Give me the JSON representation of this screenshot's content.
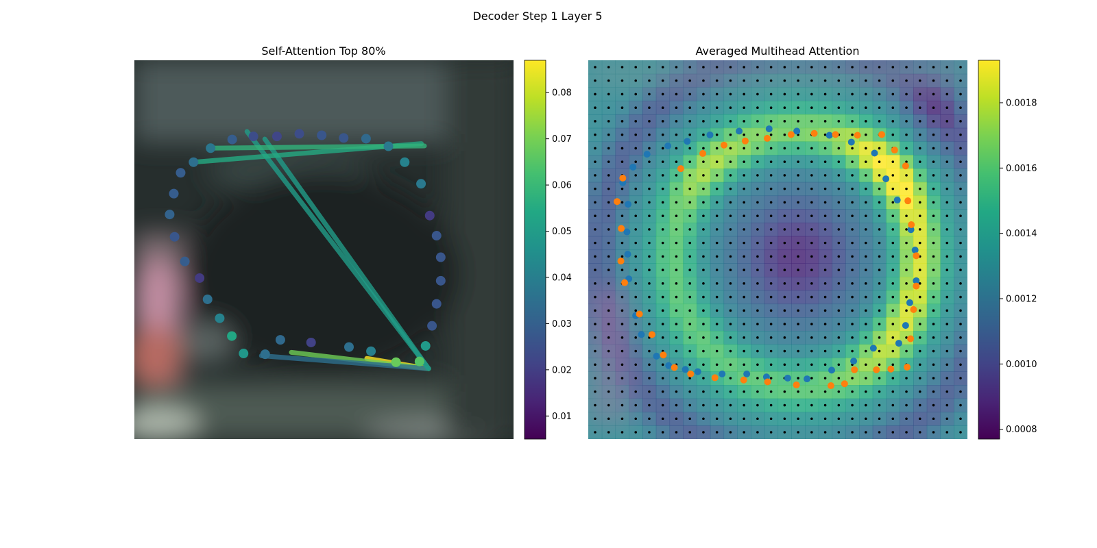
{
  "figure": {
    "suptitle": "Decoder Step 1 Layer 5"
  },
  "chart_data": [
    {
      "type": "scatter",
      "title": "Self-Attention Top 80%",
      "colormap": "viridis",
      "colorbar": {
        "range": [
          0.005,
          0.087
        ],
        "ticks": [
          0.01,
          0.02,
          0.03,
          0.04,
          0.05,
          0.06,
          0.07,
          0.08
        ],
        "tick_labels": [
          "0.01",
          "0.02",
          "0.03",
          "0.04",
          "0.05",
          "0.06",
          "0.07",
          "0.08"
        ]
      },
      "xlim": [
        0,
        1
      ],
      "ylim": [
        0,
        1
      ],
      "points": [
        {
          "x": 0.376,
          "y": 0.201,
          "v": 0.022
        },
        {
          "x": 0.435,
          "y": 0.194,
          "v": 0.024
        },
        {
          "x": 0.494,
          "y": 0.198,
          "v": 0.027
        },
        {
          "x": 0.552,
          "y": 0.205,
          "v": 0.027
        },
        {
          "x": 0.611,
          "y": 0.207,
          "v": 0.033
        },
        {
          "x": 0.67,
          "y": 0.227,
          "v": 0.038
        },
        {
          "x": 0.713,
          "y": 0.269,
          "v": 0.041
        },
        {
          "x": 0.756,
          "y": 0.326,
          "v": 0.038
        },
        {
          "x": 0.779,
          "y": 0.41,
          "v": 0.019
        },
        {
          "x": 0.797,
          "y": 0.463,
          "v": 0.027
        },
        {
          "x": 0.808,
          "y": 0.52,
          "v": 0.027
        },
        {
          "x": 0.808,
          "y": 0.582,
          "v": 0.027
        },
        {
          "x": 0.797,
          "y": 0.643,
          "v": 0.027
        },
        {
          "x": 0.785,
          "y": 0.701,
          "v": 0.027
        },
        {
          "x": 0.768,
          "y": 0.754,
          "v": 0.049
        },
        {
          "x": 0.752,
          "y": 0.795,
          "v": 0.065
        },
        {
          "x": 0.69,
          "y": 0.797,
          "v": 0.068
        },
        {
          "x": 0.624,
          "y": 0.768,
          "v": 0.04
        },
        {
          "x": 0.566,
          "y": 0.757,
          "v": 0.035
        },
        {
          "x": 0.466,
          "y": 0.745,
          "v": 0.021
        },
        {
          "x": 0.385,
          "y": 0.738,
          "v": 0.033
        },
        {
          "x": 0.345,
          "y": 0.776,
          "v": 0.035
        },
        {
          "x": 0.288,
          "y": 0.774,
          "v": 0.048
        },
        {
          "x": 0.257,
          "y": 0.728,
          "v": 0.054
        },
        {
          "x": 0.225,
          "y": 0.681,
          "v": 0.041
        },
        {
          "x": 0.193,
          "y": 0.631,
          "v": 0.035
        },
        {
          "x": 0.172,
          "y": 0.575,
          "v": 0.019
        },
        {
          "x": 0.133,
          "y": 0.531,
          "v": 0.029
        },
        {
          "x": 0.106,
          "y": 0.466,
          "v": 0.027
        },
        {
          "x": 0.093,
          "y": 0.407,
          "v": 0.031
        },
        {
          "x": 0.104,
          "y": 0.352,
          "v": 0.029
        },
        {
          "x": 0.122,
          "y": 0.297,
          "v": 0.029
        },
        {
          "x": 0.156,
          "y": 0.269,
          "v": 0.035
        },
        {
          "x": 0.201,
          "y": 0.232,
          "v": 0.037
        },
        {
          "x": 0.258,
          "y": 0.209,
          "v": 0.029
        },
        {
          "x": 0.314,
          "y": 0.201,
          "v": 0.024
        }
      ],
      "links": [
        {
          "from": [
            0.776,
            0.814
          ],
          "to": [
            0.613,
            0.787
          ],
          "v": 0.087
        },
        {
          "from": [
            0.776,
            0.814
          ],
          "to": [
            0.414,
            0.771
          ],
          "v": 0.069
        },
        {
          "from": [
            0.776,
            0.814
          ],
          "to": [
            0.335,
            0.78
          ],
          "v": 0.035
        },
        {
          "from": [
            0.776,
            0.814
          ],
          "to": [
            0.344,
            0.208
          ],
          "v": 0.05
        },
        {
          "from": [
            0.776,
            0.814
          ],
          "to": [
            0.297,
            0.188
          ],
          "v": 0.05
        },
        {
          "from": [
            0.757,
            0.22
          ],
          "to": [
            0.156,
            0.269
          ],
          "v": 0.055
        },
        {
          "from": [
            0.765,
            0.226
          ],
          "to": [
            0.201,
            0.232
          ],
          "v": 0.058
        }
      ]
    },
    {
      "type": "heatmap",
      "title": "Averaged Multihead Attention",
      "colormap": "viridis",
      "colorbar": {
        "range": [
          0.00077,
          0.00193
        ],
        "ticks": [
          0.0008,
          0.001,
          0.0012,
          0.0014,
          0.0016,
          0.0018
        ],
        "tick_labels": [
          "0.0008",
          "0.0010",
          "0.0012",
          "0.0014",
          "0.0016",
          "0.0018"
        ]
      },
      "grid": {
        "rows": 28,
        "cols": 28
      },
      "series": [
        {
          "marker_color": "#1f77b4",
          "points": [
            [
              0.091,
              0.323
            ],
            [
              0.105,
              0.38
            ],
            [
              0.102,
              0.453
            ],
            [
              0.104,
              0.512
            ],
            [
              0.107,
              0.577
            ],
            [
              0.125,
              0.674
            ],
            [
              0.14,
              0.724
            ],
            [
              0.18,
              0.781
            ],
            [
              0.212,
              0.806
            ],
            [
              0.256,
              0.816
            ],
            [
              0.289,
              0.822
            ],
            [
              0.353,
              0.828
            ],
            [
              0.418,
              0.828
            ],
            [
              0.47,
              0.836
            ],
            [
              0.526,
              0.839
            ],
            [
              0.577,
              0.841
            ],
            [
              0.642,
              0.818
            ],
            [
              0.7,
              0.794
            ],
            [
              0.752,
              0.76
            ],
            [
              0.819,
              0.747
            ],
            [
              0.837,
              0.7
            ],
            [
              0.848,
              0.64
            ],
            [
              0.865,
              0.582
            ],
            [
              0.862,
              0.501
            ],
            [
              0.851,
              0.447
            ],
            [
              0.815,
              0.369
            ],
            [
              0.785,
              0.313
            ],
            [
              0.755,
              0.245
            ],
            [
              0.694,
              0.216
            ],
            [
              0.636,
              0.198
            ],
            [
              0.55,
              0.187
            ],
            [
              0.477,
              0.181
            ],
            [
              0.398,
              0.187
            ],
            [
              0.321,
              0.197
            ],
            [
              0.261,
              0.214
            ],
            [
              0.21,
              0.226
            ],
            [
              0.155,
              0.248
            ],
            [
              0.118,
              0.282
            ]
          ]
        },
        {
          "marker_color": "#ff7f0e",
          "points": [
            [
              0.091,
              0.311
            ],
            [
              0.076,
              0.373
            ],
            [
              0.087,
              0.444
            ],
            [
              0.086,
              0.53
            ],
            [
              0.096,
              0.587
            ],
            [
              0.135,
              0.67
            ],
            [
              0.168,
              0.724
            ],
            [
              0.198,
              0.778
            ],
            [
              0.227,
              0.811
            ],
            [
              0.27,
              0.828
            ],
            [
              0.334,
              0.838
            ],
            [
              0.41,
              0.844
            ],
            [
              0.473,
              0.849
            ],
            [
              0.549,
              0.857
            ],
            [
              0.64,
              0.859
            ],
            [
              0.676,
              0.854
            ],
            [
              0.702,
              0.817
            ],
            [
              0.76,
              0.817
            ],
            [
              0.798,
              0.815
            ],
            [
              0.841,
              0.81
            ],
            [
              0.85,
              0.735
            ],
            [
              0.858,
              0.658
            ],
            [
              0.865,
              0.596
            ],
            [
              0.865,
              0.516
            ],
            [
              0.852,
              0.434
            ],
            [
              0.843,
              0.371
            ],
            [
              0.837,
              0.279
            ],
            [
              0.808,
              0.237
            ],
            [
              0.774,
              0.196
            ],
            [
              0.71,
              0.198
            ],
            [
              0.652,
              0.196
            ],
            [
              0.596,
              0.193
            ],
            [
              0.535,
              0.196
            ],
            [
              0.472,
              0.206
            ],
            [
              0.414,
              0.213
            ],
            [
              0.358,
              0.224
            ],
            [
              0.302,
              0.246
            ],
            [
              0.244,
              0.286
            ]
          ]
        }
      ]
    }
  ]
}
